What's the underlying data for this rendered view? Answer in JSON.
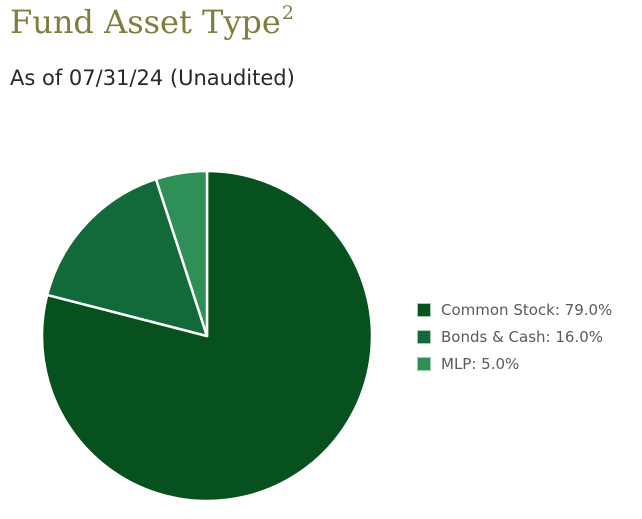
{
  "page": {
    "title": "Fund Asset Type",
    "title_superscript": "2",
    "subtitle": "As of 07/31/24 (Unaudited)"
  },
  "colors": {
    "title_text": "#7e7e40",
    "subtitle_text": "#282828",
    "legend_text": "#595b5b",
    "slice_divider": "#ffffff",
    "background": "#ffffff"
  },
  "chart_data": {
    "type": "pie",
    "categories": [
      "Common Stock",
      "Bonds & Cash",
      "MLP"
    ],
    "values": [
      79.0,
      16.0,
      5.0
    ],
    "unit": "%",
    "slice_colors": [
      "#06511e",
      "#12693a",
      "#2e8f57"
    ],
    "legend_labels": [
      "Common Stock: 79.0%",
      "Bonds & Cash: 16.0%",
      "MLP: 5.0%"
    ],
    "legend_position": "right",
    "start_angle_deg": -90,
    "direction": "clockwise"
  }
}
